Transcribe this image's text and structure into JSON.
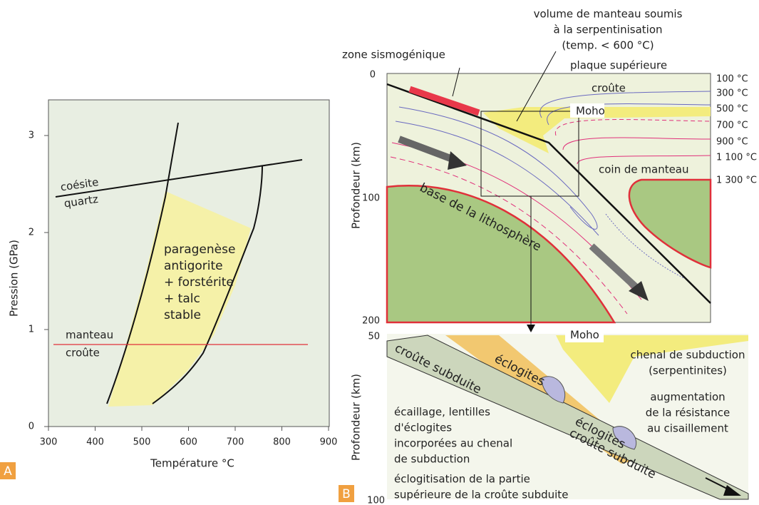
{
  "panel_a": {
    "label": "A",
    "xlabel": "Température °C",
    "ylabel": "Pression (GPa)",
    "xticks": [
      300,
      400,
      500,
      600,
      700,
      800,
      900
    ],
    "yticks": [
      0,
      1,
      2,
      3
    ],
    "coesite": "coésite",
    "quartz": "quartz",
    "manteau": "manteau",
    "croute": "croûte",
    "field": [
      "paragenèse",
      "antigorite",
      "+ forstérite",
      "+ talc",
      "stable"
    ]
  },
  "panel_b": {
    "label": "B",
    "ylabel": "Profondeur (km)",
    "depth_ticks": [
      "0",
      "100",
      "200"
    ],
    "zoom_ticks": [
      "50",
      "100"
    ],
    "temperatures": [
      "100 °C",
      "300 °C",
      "500 °C",
      "700 °C",
      "900 °C",
      "1 100 °C",
      "1 300 °C"
    ],
    "zone": "zone sismogénique",
    "volume": [
      "volume de manteau soumis",
      "à la serpentinisation",
      "(temp. < 600 °C)"
    ],
    "plaque": "plaque supérieure",
    "croute": "croûte",
    "moho": "Moho",
    "coin": "coin de manteau",
    "base": "base de la lithosphère",
    "zoom": {
      "moho": "Moho",
      "chenal": [
        "chenal de subduction",
        "(serpentinites)"
      ],
      "augmentation": [
        "augmentation",
        "de la résistance",
        "au cisaillement"
      ],
      "ecaillage": [
        "écaillage, lentilles",
        "d'éclogites",
        "incorporées au chenal",
        "de subduction"
      ],
      "eclogitisation": [
        "éclogitisation de la partie",
        "supérieure de la croûte subduite"
      ],
      "croute_subduite_1": "croûte subduite",
      "eclogites_1": "éclogites",
      "eclogites_2": "éclogites",
      "croute_subduite_2": "croûte subduite"
    }
  }
}
